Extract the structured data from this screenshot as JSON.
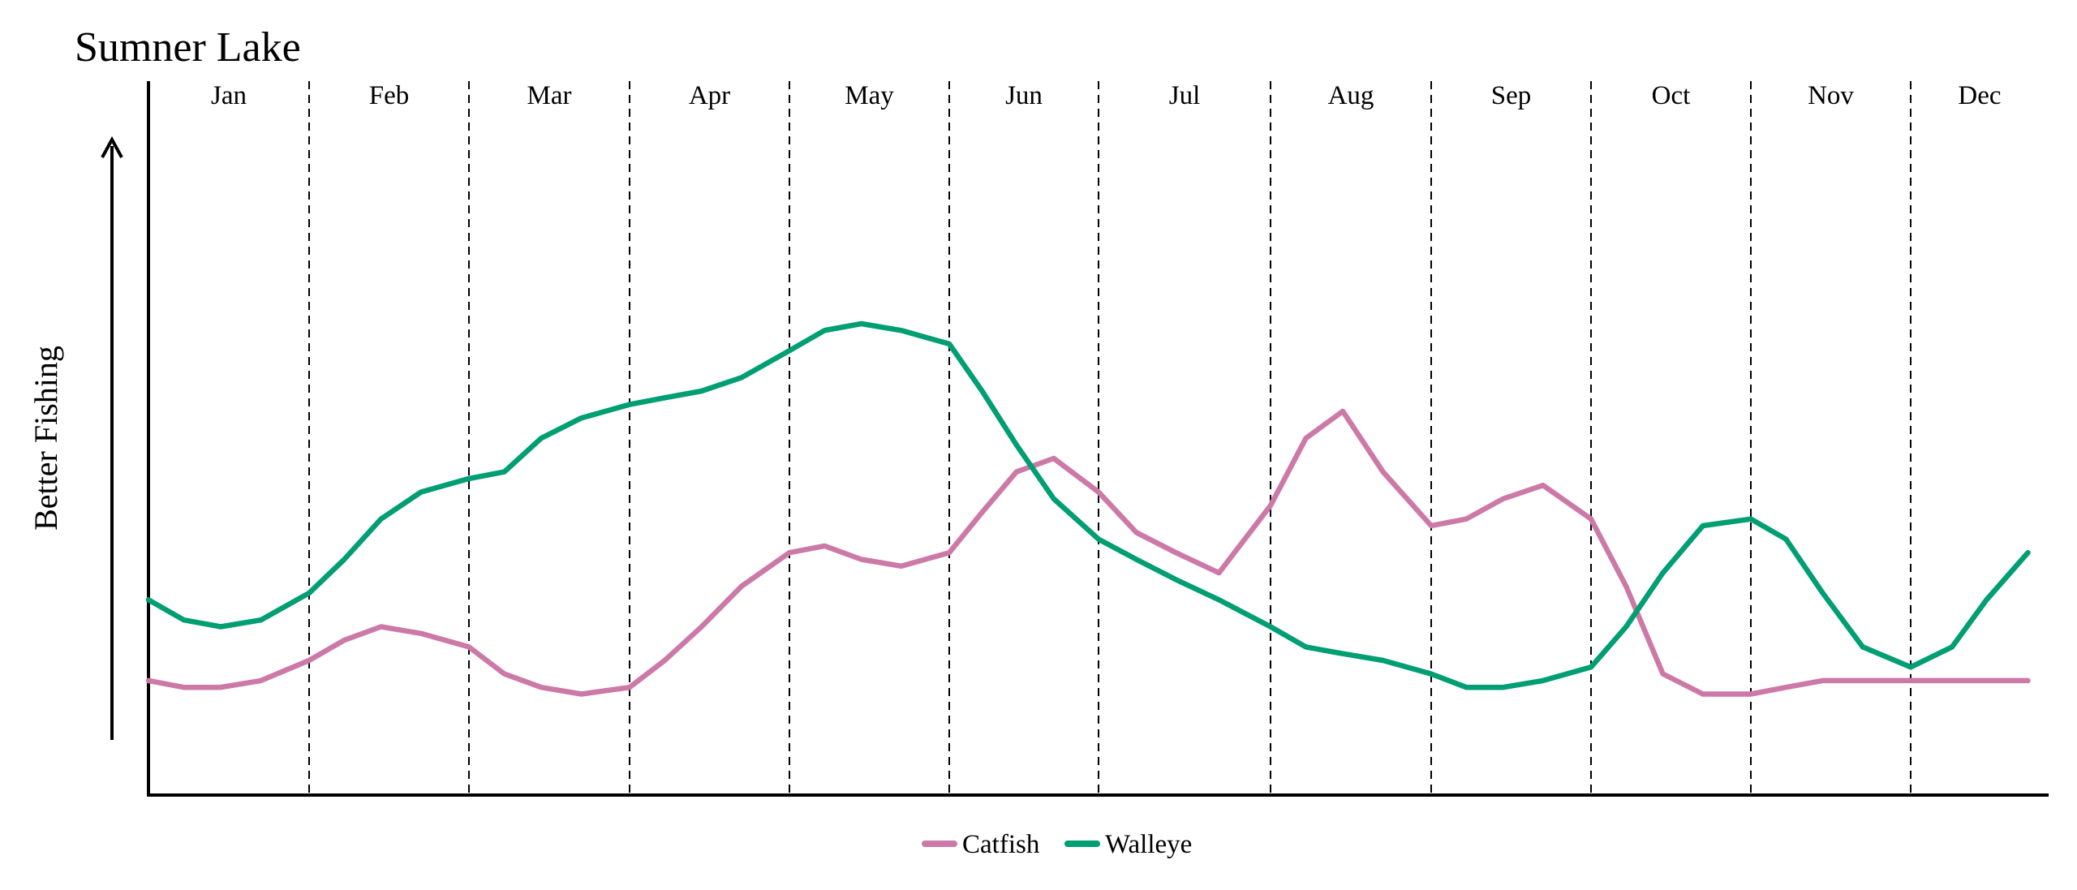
{
  "chart_data": {
    "type": "line",
    "title": "Sumner Lake",
    "ylabel": "Better Fishing",
    "xlabel": "",
    "months": [
      "Jan",
      "Feb",
      "Mar",
      "Apr",
      "May",
      "Jun",
      "Jul",
      "Aug",
      "Sep",
      "Oct",
      "Nov",
      "Dec"
    ],
    "x": [
      0,
      0.22,
      0.45,
      0.7,
      1.0,
      1.22,
      1.45,
      1.7,
      2.0,
      2.22,
      2.45,
      2.7,
      3.0,
      3.22,
      3.45,
      3.7,
      4.0,
      4.22,
      4.45,
      4.7,
      5.0,
      5.22,
      5.45,
      5.7,
      6.0,
      6.22,
      6.45,
      6.7,
      7.0,
      7.22,
      7.45,
      7.7,
      8.0,
      8.22,
      8.45,
      8.7,
      9.0,
      9.22,
      9.45,
      9.7,
      10.0,
      10.22,
      10.45,
      10.7,
      11.0,
      11.3,
      11.55,
      11.85
    ],
    "ylim": [
      0,
      100
    ],
    "grid": false,
    "legend_position": "bottom-center",
    "series": [
      {
        "name": "Catfish",
        "color": "#cc79a7",
        "values": [
          17,
          16,
          16,
          17,
          20,
          23,
          25,
          24,
          22,
          18,
          16,
          15,
          16,
          20,
          25,
          31,
          36,
          37,
          35,
          34,
          36,
          42,
          48,
          50,
          45,
          39,
          36,
          33,
          43,
          53,
          57,
          48,
          40,
          41,
          44,
          46,
          41,
          31,
          18,
          15,
          15,
          16,
          17,
          17,
          17,
          17,
          17,
          17
        ]
      },
      {
        "name": "Walleye",
        "color": "#009e73",
        "values": [
          29,
          26,
          25,
          26,
          30,
          35,
          41,
          45,
          47,
          48,
          53,
          56,
          58,
          59,
          60,
          62,
          66,
          69,
          70,
          69,
          67,
          60,
          52,
          44,
          38,
          35,
          32,
          29,
          25,
          22,
          21,
          20,
          18,
          16,
          16,
          17,
          19,
          25,
          33,
          40,
          41,
          38,
          30,
          22,
          19,
          22,
          29,
          36
        ]
      }
    ]
  }
}
